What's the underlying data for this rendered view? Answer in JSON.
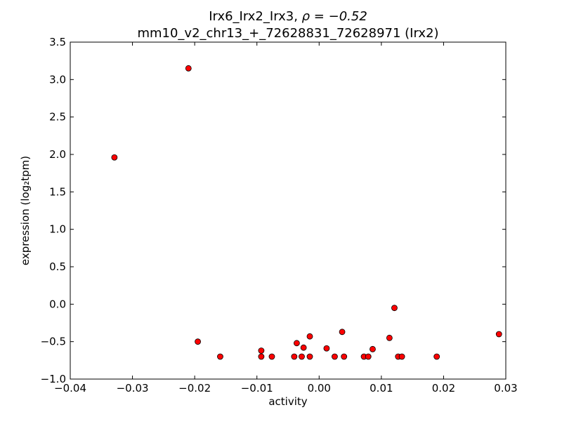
{
  "chart_data": {
    "type": "scatter",
    "title_line1": "Irx6_Irx2_Irx3, ",
    "title_rho": "ρ = −0.52",
    "title_line2": "mm10_v2_chr13_+_72628831_72628971 (Irx2)",
    "xlabel": "activity",
    "ylabel": "expression (log₂tpm)",
    "xlim": [
      -0.04,
      0.03
    ],
    "ylim": [
      -1.0,
      3.5
    ],
    "xticks": [
      -0.04,
      -0.03,
      -0.02,
      -0.01,
      0.0,
      0.01,
      0.02,
      0.03
    ],
    "xtick_labels": [
      "−0.04",
      "−0.03",
      "−0.02",
      "−0.01",
      "0.00",
      "0.01",
      "0.02",
      "0.03"
    ],
    "yticks": [
      -1.0,
      -0.5,
      0.0,
      0.5,
      1.0,
      1.5,
      2.0,
      2.5,
      3.0,
      3.5
    ],
    "ytick_labels": [
      "−1.0",
      "−0.5",
      "0.0",
      "0.5",
      "1.0",
      "1.5",
      "2.0",
      "2.5",
      "3.0",
      "3.5"
    ],
    "marker_color": "#ff0000",
    "marker_edge": "#000000",
    "grid": false,
    "points": [
      {
        "x": -0.0329,
        "y": 1.96
      },
      {
        "x": -0.021,
        "y": 3.15
      },
      {
        "x": -0.0195,
        "y": -0.5
      },
      {
        "x": -0.0159,
        "y": -0.7
      },
      {
        "x": -0.0093,
        "y": -0.62
      },
      {
        "x": -0.0093,
        "y": -0.7
      },
      {
        "x": -0.0076,
        "y": -0.7
      },
      {
        "x": -0.004,
        "y": -0.7
      },
      {
        "x": -0.0036,
        "y": -0.52
      },
      {
        "x": -0.0028,
        "y": -0.7
      },
      {
        "x": -0.0025,
        "y": -0.58
      },
      {
        "x": -0.0015,
        "y": -0.43
      },
      {
        "x": -0.0015,
        "y": -0.7
      },
      {
        "x": 0.0012,
        "y": -0.59
      },
      {
        "x": 0.0025,
        "y": -0.7
      },
      {
        "x": 0.0037,
        "y": -0.37
      },
      {
        "x": 0.004,
        "y": -0.7
      },
      {
        "x": 0.0072,
        "y": -0.7
      },
      {
        "x": 0.0079,
        "y": -0.7
      },
      {
        "x": 0.0086,
        "y": -0.6
      },
      {
        "x": 0.0113,
        "y": -0.45
      },
      {
        "x": 0.0121,
        "y": -0.05
      },
      {
        "x": 0.0127,
        "y": -0.7
      },
      {
        "x": 0.0133,
        "y": -0.7
      },
      {
        "x": 0.0189,
        "y": -0.7
      },
      {
        "x": 0.0289,
        "y": -0.4
      }
    ]
  }
}
